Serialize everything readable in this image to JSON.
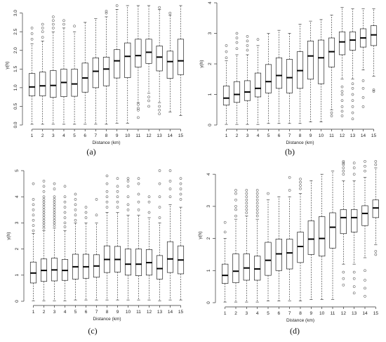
{
  "panels": [
    {
      "caption": "(a)",
      "chart_data": {
        "type": "box",
        "xlabel": "Distance (km)",
        "ylabel": "γ(h)",
        "ylim": [
          0,
          3.2
        ],
        "yticks": [
          0.0,
          0.5,
          1.0,
          1.5,
          2.0,
          2.5,
          3.0
        ],
        "ytick_labels": [
          "0.0",
          "0.5",
          "1.0",
          "1.5",
          "2.0",
          "2.5",
          "3.0"
        ],
        "categories": [
          "1",
          "2",
          "3",
          "4",
          "5",
          "6",
          "7",
          "8",
          "9",
          "10",
          "11",
          "12",
          "13",
          "14",
          "15"
        ],
        "boxes": [
          {
            "min": 0.02,
            "q1": 0.78,
            "median": 1.02,
            "q3": 1.38,
            "max": 2.18,
            "outliers": [
              2.3,
              2.45,
              2.6
            ]
          },
          {
            "min": 0.02,
            "q1": 0.78,
            "median": 1.05,
            "q3": 1.42,
            "max": 2.25,
            "outliers": [
              2.35,
              2.5,
              2.6,
              2.7
            ]
          },
          {
            "min": 0.02,
            "q1": 0.74,
            "median": 1.06,
            "q3": 1.46,
            "max": 2.5,
            "outliers": [
              2.6,
              2.7,
              2.8,
              2.9
            ]
          },
          {
            "min": 0.02,
            "q1": 0.76,
            "median": 1.14,
            "q3": 1.5,
            "max": 2.6,
            "outliers": [
              2.7,
              2.8
            ]
          },
          {
            "min": 0.02,
            "q1": 0.77,
            "median": 1.1,
            "q3": 1.5,
            "max": 2.5,
            "outliers": [
              2.65
            ]
          },
          {
            "min": 0.02,
            "q1": 0.88,
            "median": 1.26,
            "q3": 1.66,
            "max": 2.75,
            "outliers": []
          },
          {
            "min": 0.02,
            "q1": 1.0,
            "median": 1.44,
            "q3": 1.8,
            "max": 2.85,
            "outliers": []
          },
          {
            "min": 0.02,
            "q1": 1.05,
            "median": 1.5,
            "q3": 1.82,
            "max": 2.9,
            "outliers": [
              3.0,
              3.05
            ]
          },
          {
            "min": 0.05,
            "q1": 1.26,
            "median": 1.72,
            "q3": 2.02,
            "max": 3.1,
            "outliers": [
              3.2
            ]
          },
          {
            "min": 0.05,
            "q1": 1.27,
            "median": 1.84,
            "q3": 2.2,
            "max": 3.2,
            "outliers": []
          },
          {
            "min": 0.6,
            "q1": 1.55,
            "median": 1.86,
            "q3": 2.3,
            "max": 3.2,
            "outliers": [
              0.2,
              0.4,
              0.45,
              0.55
            ]
          },
          {
            "min": 0.85,
            "q1": 1.65,
            "median": 1.95,
            "q3": 2.3,
            "max": 3.2,
            "outliers": [
              0.5,
              0.65,
              0.75
            ]
          },
          {
            "min": 0.6,
            "q1": 1.45,
            "median": 1.82,
            "q3": 2.12,
            "max": 3.1,
            "outliers": [
              0.3,
              0.4,
              0.5,
              3.15
            ]
          },
          {
            "min": 0.35,
            "q1": 1.25,
            "median": 1.7,
            "q3": 1.98,
            "max": 2.95,
            "outliers": [
              3.0
            ]
          },
          {
            "min": 0.25,
            "q1": 1.35,
            "median": 1.72,
            "q3": 2.3,
            "max": 3.2,
            "outliers": []
          }
        ]
      }
    },
    {
      "caption": "(b)",
      "chart_data": {
        "type": "box",
        "xlabel": "Distance (km)",
        "ylabel": "γ(h)",
        "ylim": [
          0,
          4
        ],
        "yticks": [
          0,
          1,
          2,
          3,
          4
        ],
        "ytick_labels": [
          "0",
          "1",
          "2",
          "3",
          "4"
        ],
        "categories": [
          "1",
          "2",
          "3",
          "4",
          "5",
          "6",
          "7",
          "8",
          "9",
          "10",
          "11",
          "12",
          "13",
          "14",
          "15"
        ],
        "boxes": [
          {
            "min": 0.02,
            "q1": 0.65,
            "median": 0.88,
            "q3": 1.28,
            "max": 2.1,
            "outliers": [
              2.2,
              2.4,
              2.6
            ]
          },
          {
            "min": 0.02,
            "q1": 0.74,
            "median": 1.0,
            "q3": 1.42,
            "max": 2.3,
            "outliers": [
              2.5,
              2.7,
              2.85,
              3.0
            ]
          },
          {
            "min": 0.02,
            "q1": 0.8,
            "median": 1.08,
            "q3": 1.45,
            "max": 2.3,
            "outliers": [
              2.45,
              2.6,
              2.75,
              2.9
            ]
          },
          {
            "min": 0.02,
            "q1": 0.92,
            "median": 1.2,
            "q3": 1.7,
            "max": 2.6,
            "outliers": [
              2.8
            ]
          },
          {
            "min": 0.05,
            "q1": 1.05,
            "median": 1.42,
            "q3": 1.98,
            "max": 3.0,
            "outliers": []
          },
          {
            "min": 0.05,
            "q1": 1.2,
            "median": 1.62,
            "q3": 2.2,
            "max": 3.1,
            "outliers": []
          },
          {
            "min": 0.05,
            "q1": 1.05,
            "median": 1.55,
            "q3": 2.15,
            "max": 3.0,
            "outliers": []
          },
          {
            "min": 0.05,
            "q1": 1.2,
            "median": 1.78,
            "q3": 2.4,
            "max": 3.3,
            "outliers": []
          },
          {
            "min": 0.1,
            "q1": 1.5,
            "median": 2.26,
            "q3": 2.75,
            "max": 3.4,
            "outliers": []
          },
          {
            "min": 0.1,
            "q1": 1.35,
            "median": 2.2,
            "q3": 2.78,
            "max": 3.45,
            "outliers": []
          },
          {
            "min": 0.5,
            "q1": 1.9,
            "median": 2.4,
            "q3": 2.85,
            "max": 3.6,
            "outliers": [
              0.3,
              0.4
            ]
          },
          {
            "min": 1.5,
            "q1": 2.3,
            "median": 2.72,
            "q3": 3.05,
            "max": 3.85,
            "outliers": [
              0.3,
              0.45,
              0.6,
              0.8,
              1.0,
              1.1,
              1.25
            ]
          },
          {
            "min": 1.5,
            "q1": 2.45,
            "median": 2.78,
            "q3": 3.05,
            "max": 3.8,
            "outliers": [
              0.2,
              0.4,
              0.6,
              0.8,
              1.0,
              1.2,
              1.35
            ]
          },
          {
            "min": 1.8,
            "q1": 2.55,
            "median": 2.85,
            "q3": 3.15,
            "max": 3.8,
            "outliers": [
              0.6,
              0.9,
              1.2,
              1.45
            ]
          },
          {
            "min": 1.6,
            "q1": 2.6,
            "median": 2.95,
            "q3": 3.25,
            "max": 3.8,
            "outliers": [
              1.1,
              1.15
            ]
          }
        ]
      }
    },
    {
      "caption": "(c)",
      "chart_data": {
        "type": "box",
        "xlabel": "Distance (km)",
        "ylabel": "γ(h)",
        "ylim": [
          0,
          5
        ],
        "yticks": [
          0,
          1,
          2,
          3,
          4,
          5
        ],
        "ytick_labels": [
          "0",
          "1",
          "2",
          "3",
          "4",
          "5"
        ],
        "categories": [
          "1",
          "2",
          "3",
          "4",
          "5",
          "6",
          "7",
          "8",
          "9",
          "10",
          "11",
          "12",
          "13",
          "14",
          "15"
        ],
        "boxes": [
          {
            "min": 0.02,
            "q1": 0.7,
            "median": 1.08,
            "q3": 1.5,
            "max": 2.6,
            "outliers": [
              2.7,
              2.9,
              3.1,
              3.3,
              3.5,
              3.7,
              3.9,
              4.5
            ]
          },
          {
            "min": 0.02,
            "q1": 0.76,
            "median": 1.18,
            "q3": 1.62,
            "max": 2.7,
            "outliers": [
              2.8,
              2.9,
              3.0,
              3.1,
              3.2,
              3.3,
              3.4,
              3.5,
              3.6,
              3.7,
              3.8,
              3.9,
              4.0,
              4.2,
              4.4,
              4.6
            ]
          },
          {
            "min": 0.02,
            "q1": 0.78,
            "median": 1.2,
            "q3": 1.65,
            "max": 2.8,
            "outliers": [
              2.9,
              3.0,
              3.1,
              3.2,
              3.3,
              3.4,
              3.5,
              3.6,
              3.7,
              3.8,
              3.9,
              4.0,
              4.3,
              4.5
            ]
          },
          {
            "min": 0.02,
            "q1": 0.8,
            "median": 1.18,
            "q3": 1.6,
            "max": 2.7,
            "outliers": [
              2.85,
              3.0,
              3.2,
              3.4,
              3.6,
              3.8,
              4.0,
              4.4
            ]
          },
          {
            "min": 0.05,
            "q1": 0.85,
            "median": 1.32,
            "q3": 1.8,
            "max": 3.0,
            "outliers": [
              3.1,
              3.3,
              3.5,
              3.7,
              3.9,
              4.1
            ]
          },
          {
            "min": 0.05,
            "q1": 0.88,
            "median": 1.32,
            "q3": 1.8,
            "max": 3.0,
            "outliers": [
              3.2,
              3.4,
              3.6
            ]
          },
          {
            "min": 0.05,
            "q1": 0.92,
            "median": 1.35,
            "q3": 1.78,
            "max": 3.0,
            "outliers": [
              3.3,
              3.9
            ]
          },
          {
            "min": 0.05,
            "q1": 1.1,
            "median": 1.6,
            "q3": 2.12,
            "max": 3.4,
            "outliers": [
              3.6,
              3.8,
              4.0,
              4.2,
              4.5,
              4.8
            ]
          },
          {
            "min": 0.05,
            "q1": 1.12,
            "median": 1.6,
            "q3": 2.1,
            "max": 3.4,
            "outliers": [
              3.6,
              3.8,
              4.0,
              4.2,
              4.4,
              4.7
            ]
          },
          {
            "min": 0.05,
            "q1": 1.0,
            "median": 1.42,
            "q3": 2.0,
            "max": 3.3,
            "outliers": [
              3.5,
              3.7,
              4.0,
              4.4,
              4.6,
              4.7
            ]
          },
          {
            "min": 0.05,
            "q1": 0.98,
            "median": 1.42,
            "q3": 2.0,
            "max": 3.3,
            "outliers": [
              3.5,
              3.8,
              4.1,
              4.5,
              4.7
            ]
          },
          {
            "min": 0.05,
            "q1": 1.0,
            "median": 1.48,
            "q3": 1.98,
            "max": 3.2,
            "outliers": [
              3.4,
              3.8,
              4.0
            ]
          },
          {
            "min": 0.02,
            "q1": 0.85,
            "median": 1.25,
            "q3": 1.75,
            "max": 3.0,
            "outliers": [
              3.2,
              3.6,
              4.0,
              4.5,
              5.0
            ]
          },
          {
            "min": 0.05,
            "q1": 1.1,
            "median": 1.62,
            "q3": 2.28,
            "max": 3.7,
            "outliers": [
              4.0,
              4.3,
              4.6,
              5.0
            ]
          },
          {
            "min": 0.05,
            "q1": 1.05,
            "median": 1.58,
            "q3": 2.12,
            "max": 3.6,
            "outliers": [
              3.9,
              4.1,
              4.3,
              4.5,
              4.7
            ]
          }
        ]
      }
    },
    {
      "caption": "(d)",
      "chart_data": {
        "type": "box",
        "xlabel": "Distance (km)",
        "ylabel": "γ(h)",
        "ylim": [
          0,
          4.2
        ],
        "yticks": [
          0,
          1,
          2,
          3,
          4
        ],
        "ytick_labels": [
          "0",
          "1",
          "2",
          "3",
          "4"
        ],
        "categories": [
          "1",
          "2",
          "3",
          "4",
          "5",
          "6",
          "7",
          "8",
          "9",
          "10",
          "11",
          "12",
          "13",
          "14",
          "15"
        ],
        "boxes": [
          {
            "min": 0.02,
            "q1": 0.6,
            "median": 0.85,
            "q3": 1.2,
            "max": 2.0,
            "outliers": [
              2.2,
              2.5
            ]
          },
          {
            "min": 0.02,
            "q1": 0.62,
            "median": 0.98,
            "q3": 1.52,
            "max": 2.6,
            "outliers": [
              2.7,
              2.9,
              3.0,
              3.2,
              3.4,
              3.5
            ]
          },
          {
            "min": 0.02,
            "q1": 0.7,
            "median": 1.08,
            "q3": 1.52,
            "max": 2.7,
            "outliers": [
              2.8,
              2.9,
              3.0,
              3.1,
              3.2,
              3.3,
              3.4,
              3.5
            ]
          },
          {
            "min": 0.02,
            "q1": 0.7,
            "median": 1.05,
            "q3": 1.45,
            "max": 2.6,
            "outliers": [
              2.7,
              2.8,
              2.9,
              3.0,
              3.1,
              3.2,
              3.3,
              3.4,
              3.5
            ]
          },
          {
            "min": 0.05,
            "q1": 0.85,
            "median": 1.32,
            "q3": 1.88,
            "max": 3.2,
            "outliers": [
              3.4
            ]
          },
          {
            "min": 0.05,
            "q1": 1.0,
            "median": 1.52,
            "q3": 1.98,
            "max": 3.3,
            "outliers": []
          },
          {
            "min": 0.05,
            "q1": 1.05,
            "median": 1.55,
            "q3": 1.98,
            "max": 3.3,
            "outliers": [
              3.5,
              3.9
            ]
          },
          {
            "min": 0.05,
            "q1": 1.25,
            "median": 1.75,
            "q3": 2.2,
            "max": 3.4,
            "outliers": [
              3.55,
              3.65,
              3.75,
              3.85
            ]
          },
          {
            "min": 0.1,
            "q1": 1.5,
            "median": 1.98,
            "q3": 2.55,
            "max": 3.8,
            "outliers": []
          },
          {
            "min": 0.1,
            "q1": 1.45,
            "median": 2.0,
            "q3": 2.68,
            "max": 4.0,
            "outliers": []
          },
          {
            "min": 0.1,
            "q1": 1.7,
            "median": 2.35,
            "q3": 2.8,
            "max": 4.1,
            "outliers": []
          },
          {
            "min": 1.2,
            "q1": 2.15,
            "median": 2.65,
            "q3": 2.9,
            "max": 3.8,
            "outliers": [
              0.55,
              0.75,
              0.95,
              4.0,
              4.1,
              4.2,
              4.3,
              4.35,
              4.4
            ]
          },
          {
            "min": 1.2,
            "q1": 2.2,
            "median": 2.65,
            "q3": 2.9,
            "max": 3.8,
            "outliers": [
              0.3,
              0.5,
              0.75,
              0.95,
              4.0,
              4.2,
              4.35
            ]
          },
          {
            "min": 1.4,
            "q1": 2.4,
            "median": 2.78,
            "q3": 3.02,
            "max": 3.9,
            "outliers": [
              0.2,
              0.45,
              0.7,
              1.0,
              4.1,
              4.25,
              4.4
            ]
          },
          {
            "min": 1.8,
            "q1": 2.65,
            "median": 2.95,
            "q3": 3.2,
            "max": 4.2,
            "outliers": [
              1.5,
              1.6,
              4.3,
              4.4
            ]
          }
        ]
      }
    }
  ]
}
